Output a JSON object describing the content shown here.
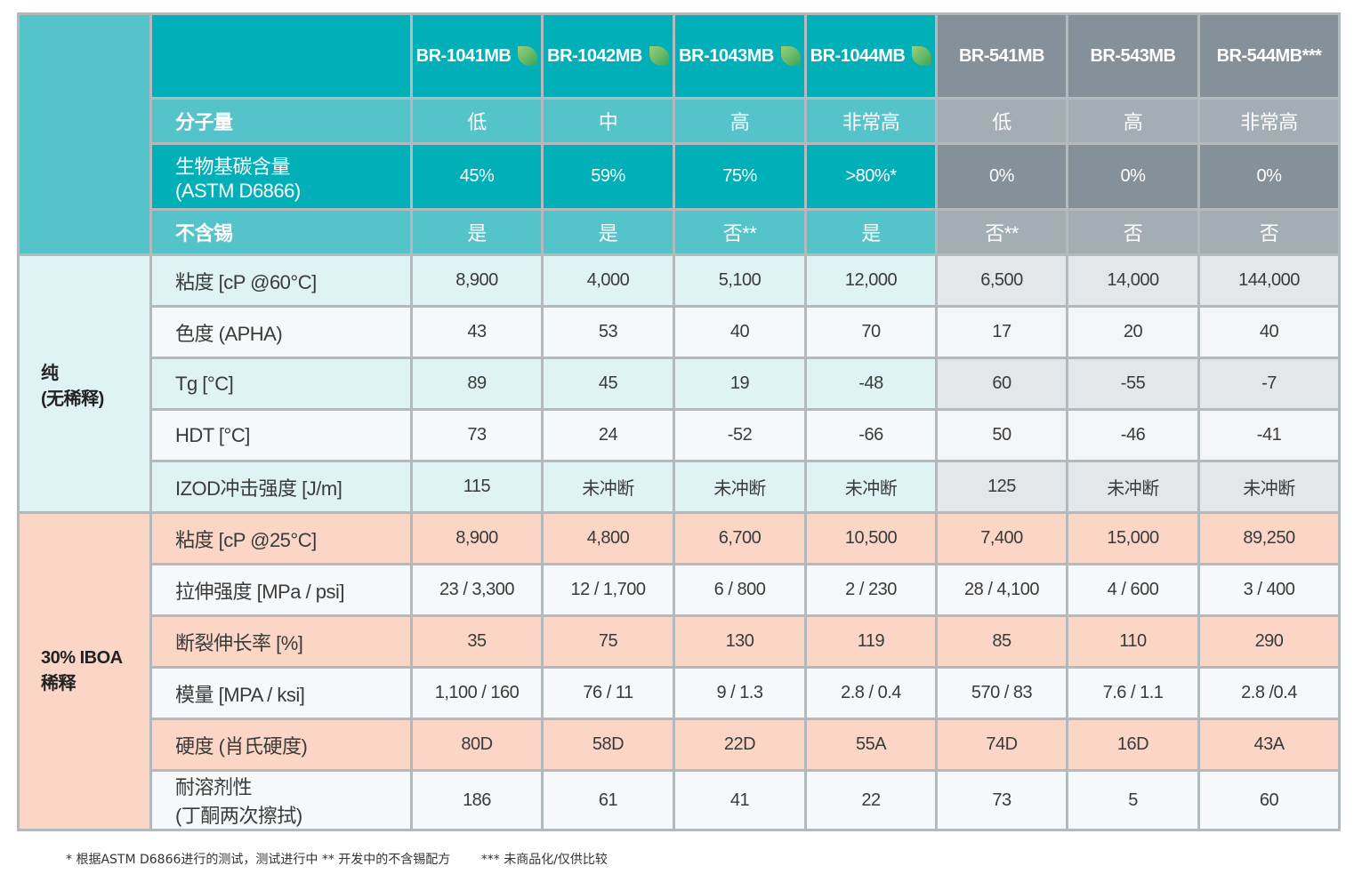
{
  "products": [
    {
      "name": "BR-1041MB",
      "bio": true
    },
    {
      "name": "BR-1042MB",
      "bio": true
    },
    {
      "name": "BR-1043MB",
      "bio": true
    },
    {
      "name": "BR-1044MB",
      "bio": true
    },
    {
      "name": "BR-541MB",
      "bio": false
    },
    {
      "name": "BR-543MB",
      "bio": false
    },
    {
      "name": "BR-544MB***",
      "bio": false
    }
  ],
  "header_rows": [
    {
      "label": "分子量",
      "values": [
        "低",
        "中",
        "高",
        "非常高",
        "低",
        "高",
        "非常高"
      ]
    },
    {
      "label": "生物基碳含量",
      "label2": "(ASTM D6866)",
      "values": [
        "45%",
        "59%",
        "75%",
        ">80%*",
        "0%",
        "0%",
        "0%"
      ]
    },
    {
      "label": "不含锡",
      "values": [
        "是",
        "是",
        "否**",
        "是",
        "否**",
        "否",
        "否"
      ]
    }
  ],
  "sections": [
    {
      "title": "纯",
      "title2": "(无稀释)",
      "rows": [
        {
          "label": "粘度 [cP @60°C]",
          "values": [
            "8,900",
            "4,000",
            "5,100",
            "12,000",
            "6,500",
            "14,000",
            "144,000"
          ]
        },
        {
          "label": "色度 (APHA)",
          "values": [
            "43",
            "53",
            "40",
            "70",
            "17",
            "20",
            "40"
          ]
        },
        {
          "label": "Tg [°C]",
          "values": [
            "89",
            "45",
            "19",
            "-48",
            "60",
            "-55",
            "-7"
          ]
        },
        {
          "label": "HDT [°C]",
          "values": [
            "73",
            "24",
            "-52",
            "-66",
            "50",
            "-46",
            "-41"
          ]
        },
        {
          "label": "IZOD冲击强度 [J/m]",
          "values": [
            "115",
            "未冲断",
            "未冲断",
            "未冲断",
            "125",
            "未冲断",
            "未冲断"
          ]
        }
      ]
    },
    {
      "title": "30% IBOA",
      "title2": "稀释",
      "rows": [
        {
          "label": "粘度 [cP @25°C]",
          "values": [
            "8,900",
            "4,800",
            "6,700",
            "10,500",
            "7,400",
            "15,000",
            "89,250"
          ]
        },
        {
          "label": "拉伸强度 [MPa / psi]",
          "values": [
            "23 / 3,300",
            "12 / 1,700",
            "6 / 800",
            "2 / 230",
            "28 / 4,100",
            "4 / 600",
            "3 / 400"
          ]
        },
        {
          "label": "断裂伸长率 [%]",
          "values": [
            "35",
            "75",
            "130",
            "119",
            "85",
            "110",
            "290"
          ]
        },
        {
          "label": "模量 [MPA / ksi]",
          "values": [
            "1,100 / 160",
            "76 / 11",
            "9 / 1.3",
            "2.8 / 0.4",
            "570 / 83",
            "7.6 / 1.1",
            "2.8 /0.4"
          ]
        },
        {
          "label": "硬度 (肖氏硬度)",
          "values": [
            "80D",
            "58D",
            "22D",
            "55A",
            "74D",
            "16D",
            "43A"
          ]
        },
        {
          "label": "耐溶剂性",
          "label2": "(丁酮两次擦拭)",
          "values": [
            "186",
            "61",
            "41",
            "22",
            "73",
            "5",
            "60"
          ]
        }
      ]
    }
  ],
  "footnotes": [
    "* 根据ASTM D6866进行的测试，测试进行中 ** 开发中的不含锡配方",
    "*** 未商品化/仅供比较"
  ]
}
